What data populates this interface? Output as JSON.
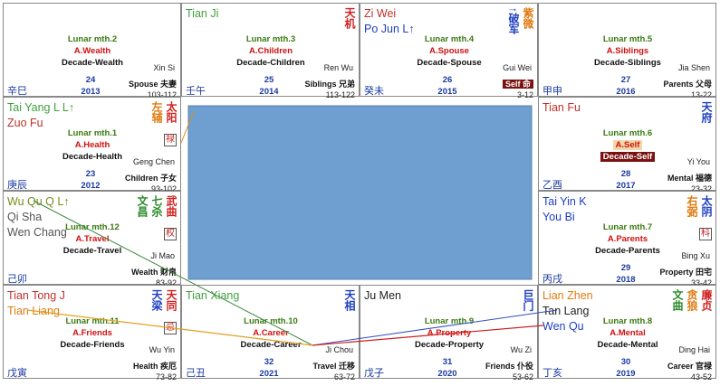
{
  "palaces": [
    {
      "stars": [],
      "glyphs": [],
      "lunar": "Lunar mth.2",
      "aspect": "A.Wealth",
      "decade": "Decade-Wealth",
      "stem": "Xin Si",
      "age": "24",
      "year": "2013",
      "house": "Spouse 夫妻",
      "range": "103-112",
      "branch": "辛巳"
    },
    {
      "stars": [
        {
          "text": "Tian Ji",
          "color": "#3f9f3f"
        }
      ],
      "glyphs": [
        {
          "text": "天机",
          "color": "#d02020"
        }
      ],
      "lunar": "Lunar mth.3",
      "aspect": "A.Children",
      "decade": "Decade-Children",
      "stem": "Ren Wu",
      "age": "25",
      "year": "2014",
      "house": "Siblings 兄弟",
      "range": "113-122",
      "branch": "壬午"
    },
    {
      "stars": [
        {
          "text": "Zi Wei",
          "color": "#c0302a"
        },
        {
          "text": "Po Jun  L↑",
          "color": "#2040c0"
        }
      ],
      "glyphs": [
        {
          "text": "↑破军",
          "color": "#2040c0"
        },
        {
          "text": "紫微",
          "color": "#e07a10"
        }
      ],
      "lunar": "Lunar mth.4",
      "aspect": "A.Spouse",
      "decade": "Decade-Spouse",
      "stem": "Gui Wei",
      "age": "26",
      "year": "2015",
      "house": "Self 命",
      "range": "3-12",
      "branch": "癸未"
    },
    {
      "stars": [],
      "glyphs": [],
      "lunar": "Lunar mth.5",
      "aspect": "A.Siblings",
      "decade": "Decade-Siblings",
      "stem": "Jia Shen",
      "age": "27",
      "year": "2016",
      "house": "Parents 父母",
      "range": "13-22",
      "branch": "甲申"
    },
    {
      "stars": [
        {
          "text": "Tai Yang  L L↑",
          "color": "#3f9f3f"
        },
        {
          "text": "Zuo Fu",
          "color": "#c0302a"
        }
      ],
      "glyphs": [
        {
          "text": "左辅",
          "color": "#e07a10"
        },
        {
          "text": "太阳",
          "color": "#d02020"
        }
      ],
      "badge": "禄",
      "lunar": "Lunar mth.1",
      "aspect": "A.Health",
      "decade": "Decade-Health",
      "stem": "Geng Chen",
      "age": "23",
      "year": "2012",
      "house": "Children 子女",
      "range": "93-102",
      "branch": "庚辰"
    },
    {
      "stars": [
        {
          "text": "Tian Fu",
          "color": "#c0302a"
        }
      ],
      "glyphs": [
        {
          "text": "天府",
          "color": "#2040c0"
        }
      ],
      "lunar": "Lunar mth.6",
      "aspect": "A.Self",
      "decade": "Decade-Self",
      "stem": "Yi You",
      "age": "28",
      "year": "2017",
      "house": "Mental 福德",
      "range": "23-32",
      "branch": "乙酉"
    },
    {
      "stars": [
        {
          "text": "Wu Qu  Q L↑",
          "color": "#7a8a20"
        },
        {
          "text": "Qi Sha",
          "color": "#555555"
        },
        {
          "text": "Wen Chang",
          "color": "#555555"
        }
      ],
      "glyphs": [
        {
          "text": "文昌",
          "color": "#2a8a2a"
        },
        {
          "text": "七杀",
          "color": "#2a8a2a"
        },
        {
          "text": "武曲",
          "color": "#d02020"
        }
      ],
      "badge": "权",
      "lunar": "Lunar mth.12",
      "aspect": "A.Travel",
      "decade": "Decade-Travel",
      "stem": "Ji Mao",
      "house": "Wealth 财帛",
      "range": "83-92",
      "branch": "己卯"
    },
    {
      "stars": [
        {
          "text": "Tai Yin  K",
          "color": "#2040c0"
        },
        {
          "text": "You Bi",
          "color": "#2040c0"
        }
      ],
      "glyphs": [
        {
          "text": "右弼",
          "color": "#e07a10"
        },
        {
          "text": "太阴",
          "color": "#2040c0"
        }
      ],
      "badge": "科",
      "lunar": "Lunar mth.7",
      "aspect": "A.Parents",
      "decade": "Decade-Parents",
      "stem": "Bing Xu",
      "age": "29",
      "year": "2018",
      "house": "Property 田宅",
      "range": "33-42",
      "branch": "丙戌"
    },
    {
      "stars": [
        {
          "text": "Tian Tong  J",
          "color": "#c0302a"
        },
        {
          "text": "Tian Liang",
          "color": "#e07a10"
        }
      ],
      "glyphs": [
        {
          "text": "天梁",
          "color": "#2040c0"
        },
        {
          "text": "天同",
          "color": "#d02020"
        }
      ],
      "badge": "忌",
      "lunar": "Lunar mth.11",
      "aspect": "A.Friends",
      "decade": "Decade-Friends",
      "stem": "Wu Yin",
      "house": "Health 疾厄",
      "range": "73-82",
      "branch": "戊寅"
    },
    {
      "stars": [
        {
          "text": "Tian Xiang",
          "color": "#3f9f3f"
        }
      ],
      "glyphs": [
        {
          "text": "天相",
          "color": "#2040c0"
        }
      ],
      "lunar": "Lunar mth.10",
      "aspect": "A.Career",
      "decade": "Decade-Career",
      "stem": "Ji Chou",
      "age": "32",
      "year": "2021",
      "house": "Travel 迁移",
      "range": "63-72",
      "branch": "己丑"
    },
    {
      "stars": [
        {
          "text": "Ju Men",
          "color": "#222222"
        }
      ],
      "glyphs": [
        {
          "text": "巨门",
          "color": "#2040c0"
        }
      ],
      "lunar": "Lunar mth.9",
      "aspect": "A.Property",
      "decade": "Decade-Property",
      "stem": "Wu Zi",
      "age": "31",
      "year": "2020",
      "house": "Friends 仆役",
      "range": "53-62",
      "branch": "戊子"
    },
    {
      "stars": [
        {
          "text": "Lian Zhen",
          "color": "#e07a10"
        },
        {
          "text": "Tan Lang",
          "color": "#222222"
        },
        {
          "text": "Wen Qu",
          "color": "#2040c0"
        }
      ],
      "glyphs": [
        {
          "text": "文曲",
          "color": "#2a8a2a"
        },
        {
          "text": "贪狼",
          "color": "#e07a10"
        },
        {
          "text": "廉贞",
          "color": "#d02020"
        }
      ],
      "lunar": "Lunar mth.8",
      "aspect": "A.Mental",
      "decade": "Decade-Mental",
      "stem": "Ding Hai",
      "age": "30",
      "year": "2019",
      "house": "Career 官禄",
      "range": "43-52",
      "branch": "丁亥"
    }
  ]
}
